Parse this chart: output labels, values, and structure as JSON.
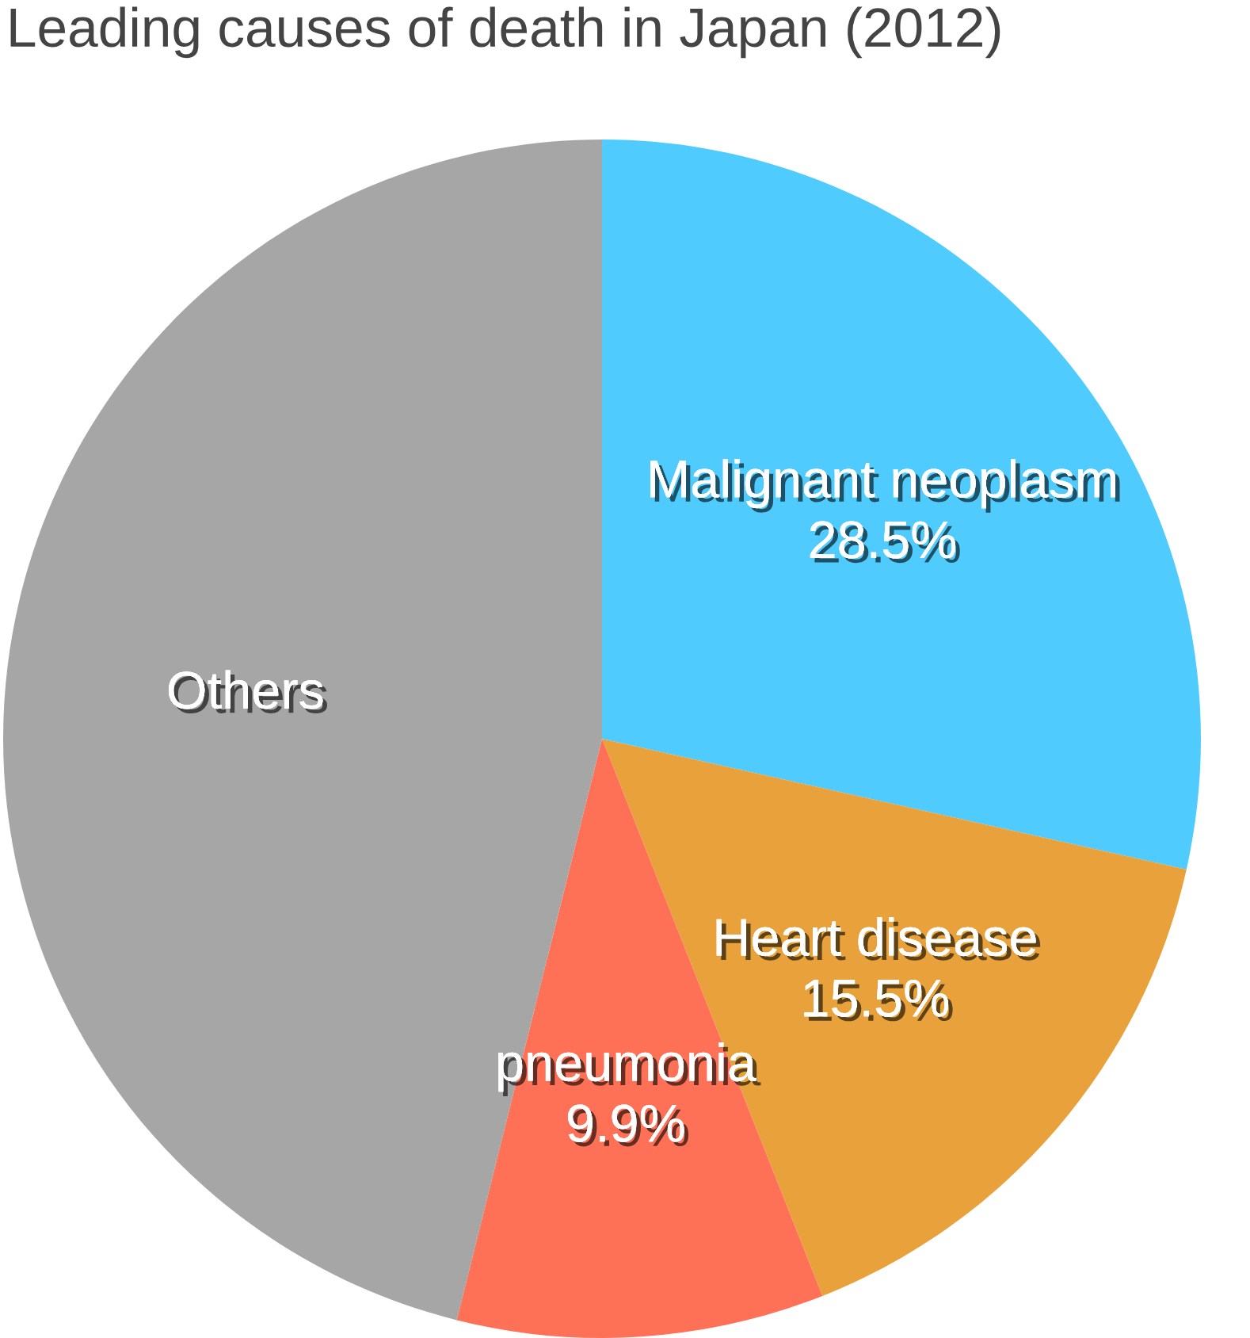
{
  "chart_data": {
    "type": "pie",
    "title": "Leading causes of death in Japan (2012)",
    "categories": [
      "Malignant neoplasm",
      "Heart disease",
      "pneumonia",
      "Others"
    ],
    "values": [
      28.5,
      15.5,
      9.9,
      46.1
    ],
    "value_labels": [
      "28.5%",
      "15.5%",
      "9.9%",
      null
    ],
    "colors": [
      "#4fcbfe",
      "#e9a23b",
      "#fe7157",
      "#a6a6a6"
    ],
    "legend": false
  }
}
